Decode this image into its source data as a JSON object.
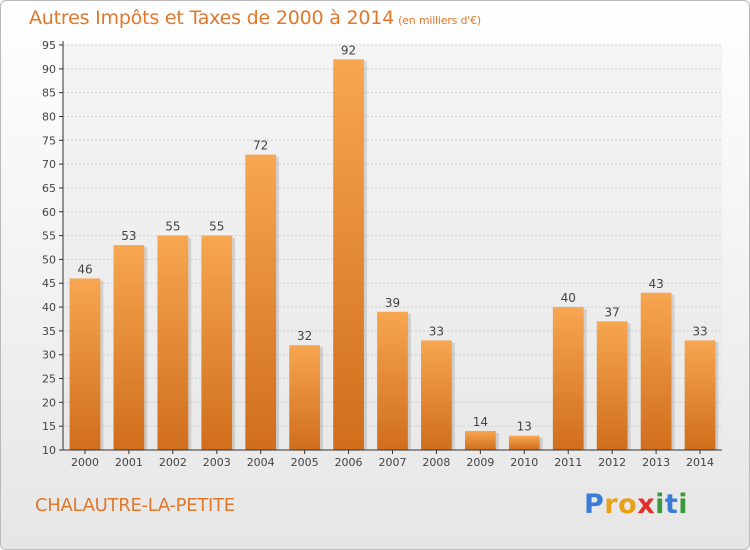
{
  "header": {
    "title": "Autres Impôts et Taxes de 2000 à 2014",
    "subtitle": "(en milliers d'€)"
  },
  "footer": {
    "commune": "CHALAUTRE-LA-PETITE",
    "brand": "Proxiti"
  },
  "brand_letters": [
    {
      "char": "P",
      "color": "#3a7bd5"
    },
    {
      "char": "r",
      "color": "#e8a21a"
    },
    {
      "char": "o",
      "color": "#e8a21a"
    },
    {
      "char": "x",
      "color": "#e0302c"
    },
    {
      "char": "i",
      "color": "#3a9a3a"
    },
    {
      "char": "t",
      "color": "#3a7bd5"
    },
    {
      "char": "i",
      "color": "#3a9a3a"
    }
  ],
  "colors": {
    "accent": "#e0782c",
    "bar_light": "#f7a651",
    "bar_dark": "#d06e1c",
    "grid": "#d0d0d0",
    "axis": "#333333"
  },
  "chart_data": {
    "type": "bar",
    "categories": [
      "2000",
      "2001",
      "2002",
      "2003",
      "2004",
      "2005",
      "2006",
      "2007",
      "2008",
      "2009",
      "2010",
      "2011",
      "2012",
      "2013",
      "2014"
    ],
    "values": [
      46,
      53,
      55,
      55,
      72,
      32,
      92,
      39,
      33,
      14,
      13,
      40,
      37,
      43,
      33
    ],
    "data_labels": [
      "46",
      "53",
      "55",
      "55",
      "72",
      "32",
      "92",
      "39",
      "33",
      "14",
      "13",
      "40",
      "37",
      "43",
      "33"
    ],
    "ylim": [
      10,
      95
    ],
    "yticks": [
      10,
      15,
      20,
      25,
      30,
      35,
      40,
      45,
      50,
      55,
      60,
      65,
      70,
      75,
      80,
      85,
      90,
      95
    ],
    "grid": true
  }
}
